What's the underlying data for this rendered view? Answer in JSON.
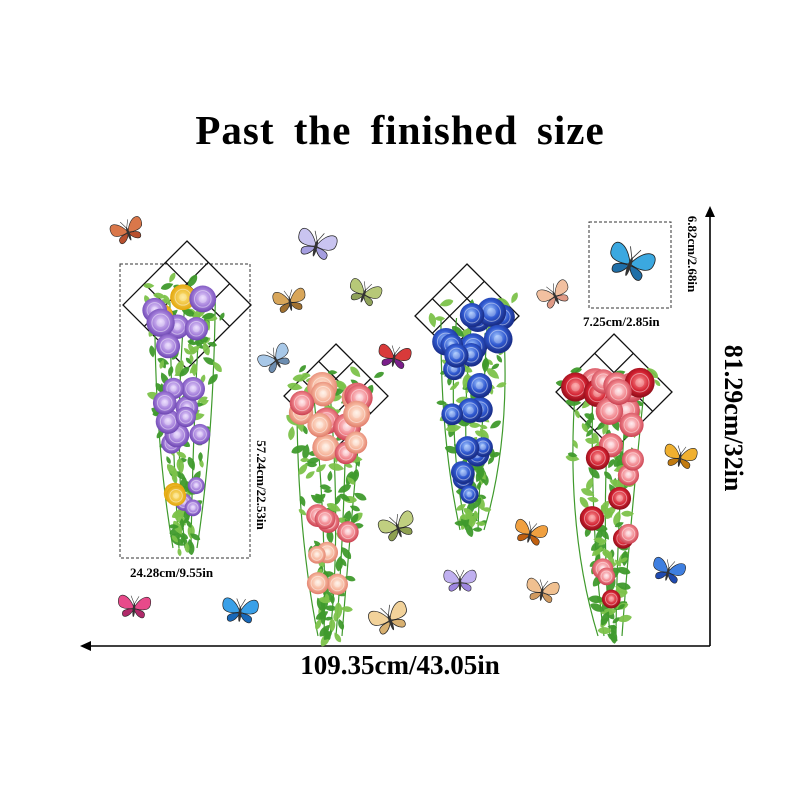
{
  "title": "Past the finished size",
  "dimensions": {
    "overall_width": "109.35cm/43.05in",
    "overall_height": "81.29cm/32in",
    "sticker_width": "24.28cm/9.55in",
    "sticker_height": "57.24cm/22.53in",
    "butterfly_width": "7.25cm/2.85in",
    "butterfly_height": "6.82cm/2.68in"
  },
  "colors": {
    "text": "#000000",
    "leaf": "#3f9a2c",
    "leaf_light": "#7cc24a",
    "purple_flower": "#9b6fd4",
    "pink_flower": "#f0a0a0",
    "blue_flower": "#2a4fc0",
    "red_flower": "#e05a6a"
  },
  "products": [
    {
      "name": "purple-hydrangea-vine-icon"
    },
    {
      "name": "peach-rose-vine-icon"
    },
    {
      "name": "blue-rose-vine-icon"
    },
    {
      "name": "red-rose-vine-icon"
    }
  ]
}
